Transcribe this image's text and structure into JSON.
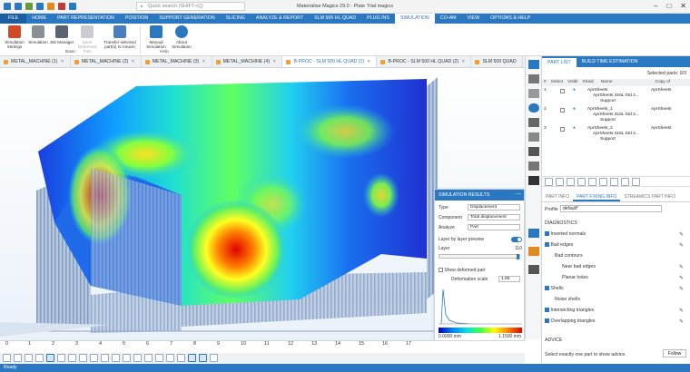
{
  "window": {
    "title": "Materialise Magics 29.0 - Plate Trial magics",
    "search_placeholder": "Quick search (SHIFT+Q)"
  },
  "menu": [
    "FILE",
    "HOME",
    "PART REPRESENTATION",
    "POSITION",
    "SUPPORT GENERATION",
    "SLICING",
    "ANALYZE & REPORT",
    "SLM 500 HL QUAD",
    "PLUG INS",
    "SIMULATION",
    "CO-AM",
    "VIEW",
    "OPTIONS & HELP"
  ],
  "ribbon": {
    "buttons": [
      {
        "label": "Simulation Settings"
      },
      {
        "label": "Simulation"
      },
      {
        "label": "Job Manager"
      },
      {
        "label": "Save Deformed Part"
      },
      {
        "label": "Transfer selected part(s) to Amaze"
      },
      {
        "label": "Manual Simulation"
      },
      {
        "label": "About Simulation"
      }
    ],
    "groups": [
      "Basic",
      "Help"
    ]
  },
  "doc_tabs": [
    "METAL_MACHINE (1)",
    "METAL_MACHINE (2)",
    "METAL_MACHINE (3)",
    "METAL_MACHINE (4)",
    "B-PROC - SLM 500 HL QUAD (1)",
    "B-PROC - SLM 500 HL QUAD (2)",
    "SLM 500 QUAD"
  ],
  "ruler": [
    "0",
    "1",
    "2",
    "3",
    "4",
    "5",
    "6",
    "7",
    "8",
    "9",
    "10",
    "11",
    "12",
    "13",
    "14",
    "15",
    "16",
    "17"
  ],
  "status": "Ready",
  "sim_results": {
    "title": "SIMULATION RESULTS",
    "type_label": "Type",
    "type_value": "Displacement",
    "component_label": "Component",
    "component_value": "Total displacement",
    "analyze_label": "Analyze",
    "analyze_value": "Part",
    "layer_preview": "Layer by layer preview",
    "layer_label": "Layer",
    "layer_value": "110",
    "show_deformed": "Show deformed part",
    "deform_scale_label": "Deformation scale",
    "deform_scale_value": "1.00",
    "scale_min": "0.0000 mm",
    "scale_max": "1.1500 mm"
  },
  "part_list": {
    "tabs": [
      "PART LIST",
      "BUILD TIME ESTIMATION"
    ],
    "selected_parts": "Selected parts: 0/3",
    "headers": [
      "#",
      "Select",
      "Visibl",
      "Shadi",
      "Name",
      "Copy of"
    ],
    "rows": [
      {
        "num": "1",
        "name": "AprSheets",
        "copy": "AprSheets",
        "sub": "AprSheets 316L Std 2...",
        "support": "Support"
      },
      {
        "num": "2",
        "name": "AprSheets_1",
        "copy": "AprSheets",
        "sub": "AprSheets 316L Std 2...",
        "support": "Support"
      },
      {
        "num": "3",
        "name": "AprSheets_2",
        "copy": "AprSheets",
        "sub": "AprSheets 316L Std 2...",
        "support": "Support"
      }
    ]
  },
  "fixing": {
    "tabs": [
      "PART INFO",
      "PART FIXING INFO",
      "STREAMICS PART INFO"
    ],
    "profile_label": "Profile",
    "profile_value": "default*",
    "diagnostics": "DIAGNOSTICS",
    "items": [
      "Inverted normals",
      "Bad edges",
      "Bad contours",
      "Near bad edges",
      "Planar holes",
      "Shells",
      "Noise shells",
      "Intersecting triangles",
      "Overlapping triangles"
    ],
    "advice": "ADVICE",
    "advice_text": "Select exactly one part to show advice.",
    "follow": "Follow"
  },
  "colors": {
    "accent": "#2b78c2"
  }
}
